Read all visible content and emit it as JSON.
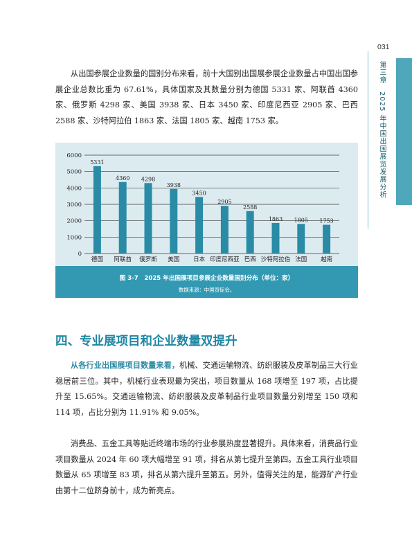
{
  "header": {
    "page_number": "031",
    "chapter_label": "第三章　2025 年中国出国展览发展分析"
  },
  "paragraphs": {
    "p1": "从出国参展企业数量的国别分布来看，前十大国别出国展参展企业数量占中国出国参展企业总数比重为 67.61%，具体国家及其数量分别为德国 5331 家、阿联酋 4360 家、俄罗斯 4298 家、美国 3938 家、日本 3450 家、印度尼西亚 2905 家、巴西 2588 家、沙特阿拉伯 1863 家、法国 1805 家、越南 1753 家。",
    "p2_lead": "从各行业出国展项目数量来看，",
    "p2_body": "机械、交通运输物流、纺织服装及皮革制品三大行业稳居前三位。其中，机械行业表现最为突出，项目数量从 168 项增至 197 项，占比提升至 15.65%。交通运输物流、纺织服装及皮革制品行业项目数量分别增至 150 项和 114 项，占比分别为 11.91% 和 9.05%。",
    "p3": "消费品、五金工具等贴近终端市场的行业参展热度显著提升。具体来看，消费品行业项目数量从 2024 年 60 项大幅增至 91 项，排名从第七提升至第四。五金工具行业项目数量从 65 项增至 83 项，排名从第六提升至第五。另外，值得关注的是，能源矿产行业由第十二位跻身前十，成为新亮点。"
  },
  "figure": {
    "caption": "图 3-7　2025 年出国展项目参展企业数量国别分布（单位：家）",
    "source": "数据来源：中国贸促会。"
  },
  "section": {
    "heading": "四、专业展项目和企业数量双提升"
  },
  "chart_data": {
    "type": "bar",
    "categories": [
      "德国",
      "阿联酋",
      "俄罗斯",
      "美国",
      "日本",
      "印度尼西亚",
      "巴西",
      "沙特阿拉伯",
      "法国",
      "越南"
    ],
    "values": [
      5331,
      4360,
      4298,
      3938,
      3450,
      2905,
      2588,
      1863,
      1805,
      1753
    ],
    "data_labels": [
      "5331",
      "4360",
      "4298",
      "3938",
      "3450",
      "2905",
      "2588",
      "1863",
      "1805",
      "1753"
    ],
    "yticks": [
      "0",
      "1000",
      "2000",
      "3000",
      "4000",
      "5000",
      "6000"
    ],
    "ylim": [
      0,
      6000
    ],
    "grid": true,
    "bar_color": "#2a8ba6",
    "title": "",
    "xlabel": "",
    "ylabel": ""
  },
  "colors": {
    "accent": "#1e87a3",
    "caption_bar": "#3399b3",
    "figure_background": "#dcebf0",
    "side_tab": "#4fa7bb"
  }
}
